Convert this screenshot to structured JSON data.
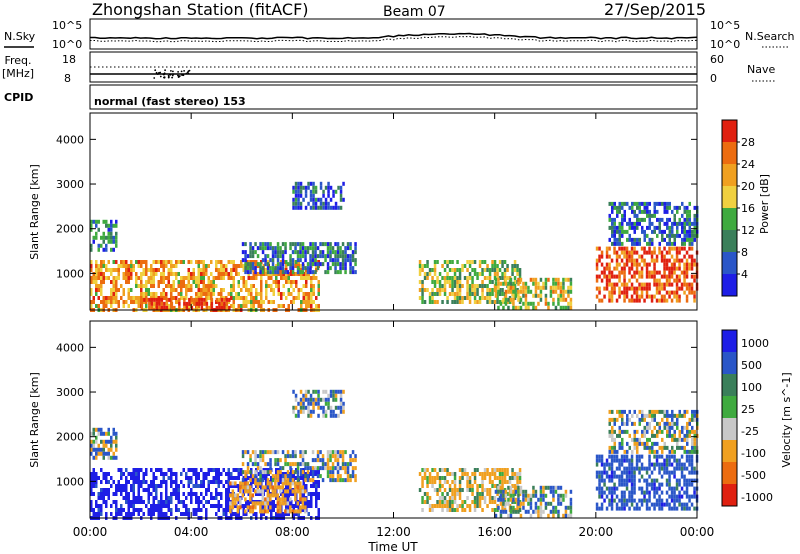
{
  "header": {
    "station": "Zhongshan Station (fitACF)",
    "beam": "Beam 07",
    "date": "27/Sep/2015"
  },
  "noise_panel": {
    "left_label": "N.Sky",
    "right_label": "N.Search",
    "left_ticks": [
      "10^5",
      "10^0"
    ],
    "right_ticks": [
      "10^5",
      "10^0"
    ]
  },
  "freq_panel": {
    "left_label_line1": "Freq.",
    "left_label_line2": "[MHz]",
    "right_label": "Nave",
    "left_ticks": [
      "18",
      "8"
    ],
    "right_ticks": [
      "60",
      "0"
    ]
  },
  "cpid": {
    "label": "CPID",
    "value": "normal (fast stereo) 153"
  },
  "colors": {
    "power": [
      "#1e1ee6",
      "#2a56c8",
      "#3a7f5a",
      "#3faa3f",
      "#f0d040",
      "#f0a020",
      "#ec6c10",
      "#e02010"
    ],
    "velocity": [
      "#1e1ee6",
      "#2a56c8",
      "#3a7f5a",
      "#3faa3f",
      "#c8c8c8",
      "#f0a020",
      "#ec6c10",
      "#e02010"
    ]
  },
  "chart_data": [
    {
      "type": "heatmap",
      "title": "",
      "xlabel": "",
      "ylabel": "Slant Range [km]",
      "x_ticks": [
        "00:00",
        "04:00",
        "08:00",
        "12:00",
        "16:00",
        "20:00",
        "00:00"
      ],
      "y_ticks": [
        "1000",
        "2000",
        "3000",
        "4000"
      ],
      "ylim": [
        180,
        4590
      ],
      "xlim_hours": [
        0,
        24
      ],
      "colorbar": {
        "label": "Power [dB]",
        "ticks": [
          "4",
          "8",
          "12",
          "16",
          "20",
          "24",
          "28"
        ],
        "range": [
          0,
          32
        ]
      },
      "echo_regions": [
        {
          "x0": 0.0,
          "x1": 9.0,
          "r0": 200,
          "r1": 1300,
          "level": 22
        },
        {
          "x0": 2.0,
          "x1": 5.5,
          "r0": 200,
          "r1": 450,
          "level": 30
        },
        {
          "x0": 0.0,
          "x1": 1.0,
          "r0": 1500,
          "r1": 2200,
          "level": 9
        },
        {
          "x0": 6.0,
          "x1": 10.5,
          "r0": 1000,
          "r1": 1700,
          "level": 8
        },
        {
          "x0": 8.0,
          "x1": 10.0,
          "r0": 2500,
          "r1": 3050,
          "level": 6
        },
        {
          "x0": 13.0,
          "x1": 17.0,
          "r0": 400,
          "r1": 1300,
          "level": 16
        },
        {
          "x0": 16.0,
          "x1": 19.0,
          "r0": 200,
          "r1": 900,
          "level": 18
        },
        {
          "x0": 20.0,
          "x1": 24.0,
          "r0": 400,
          "r1": 1600,
          "level": 28
        },
        {
          "x0": 20.5,
          "x1": 24.0,
          "r0": 1700,
          "r1": 2600,
          "level": 8
        }
      ]
    },
    {
      "type": "heatmap",
      "title": "",
      "xlabel": "Time UT",
      "ylabel": "Slant Range [km]",
      "x_ticks": [
        "00:00",
        "04:00",
        "08:00",
        "12:00",
        "16:00",
        "20:00",
        "00:00"
      ],
      "y_ticks": [
        "1000",
        "2000",
        "3000",
        "4000"
      ],
      "ylim": [
        180,
        4590
      ],
      "xlim_hours": [
        0,
        24
      ],
      "colorbar": {
        "label": "Velocity [m s^-1]",
        "ticks": [
          "1000",
          "500",
          "100",
          "25",
          "-25",
          "-100",
          "-500",
          "-1000"
        ]
      },
      "echo_regions": [
        {
          "x0": 0.0,
          "x1": 9.0,
          "r0": 200,
          "r1": 1300,
          "level": 700
        },
        {
          "x0": 5.5,
          "x1": 8.5,
          "r0": 300,
          "r1": 1000,
          "level": -300
        },
        {
          "x0": 0.0,
          "x1": 1.0,
          "r0": 1500,
          "r1": 2200,
          "level": 10
        },
        {
          "x0": 6.0,
          "x1": 10.5,
          "r0": 1000,
          "r1": 1700,
          "level": 0
        },
        {
          "x0": 8.0,
          "x1": 10.0,
          "r0": 2500,
          "r1": 3050,
          "level": 60
        },
        {
          "x0": 13.0,
          "x1": 17.0,
          "r0": 400,
          "r1": 1300,
          "level": -150
        },
        {
          "x0": 16.0,
          "x1": 19.0,
          "r0": 200,
          "r1": 900,
          "level": 80
        },
        {
          "x0": 20.0,
          "x1": 24.0,
          "r0": 400,
          "r1": 1600,
          "level": 300
        },
        {
          "x0": 20.5,
          "x1": 24.0,
          "r0": 1700,
          "r1": 2600,
          "level": 5
        }
      ]
    }
  ]
}
